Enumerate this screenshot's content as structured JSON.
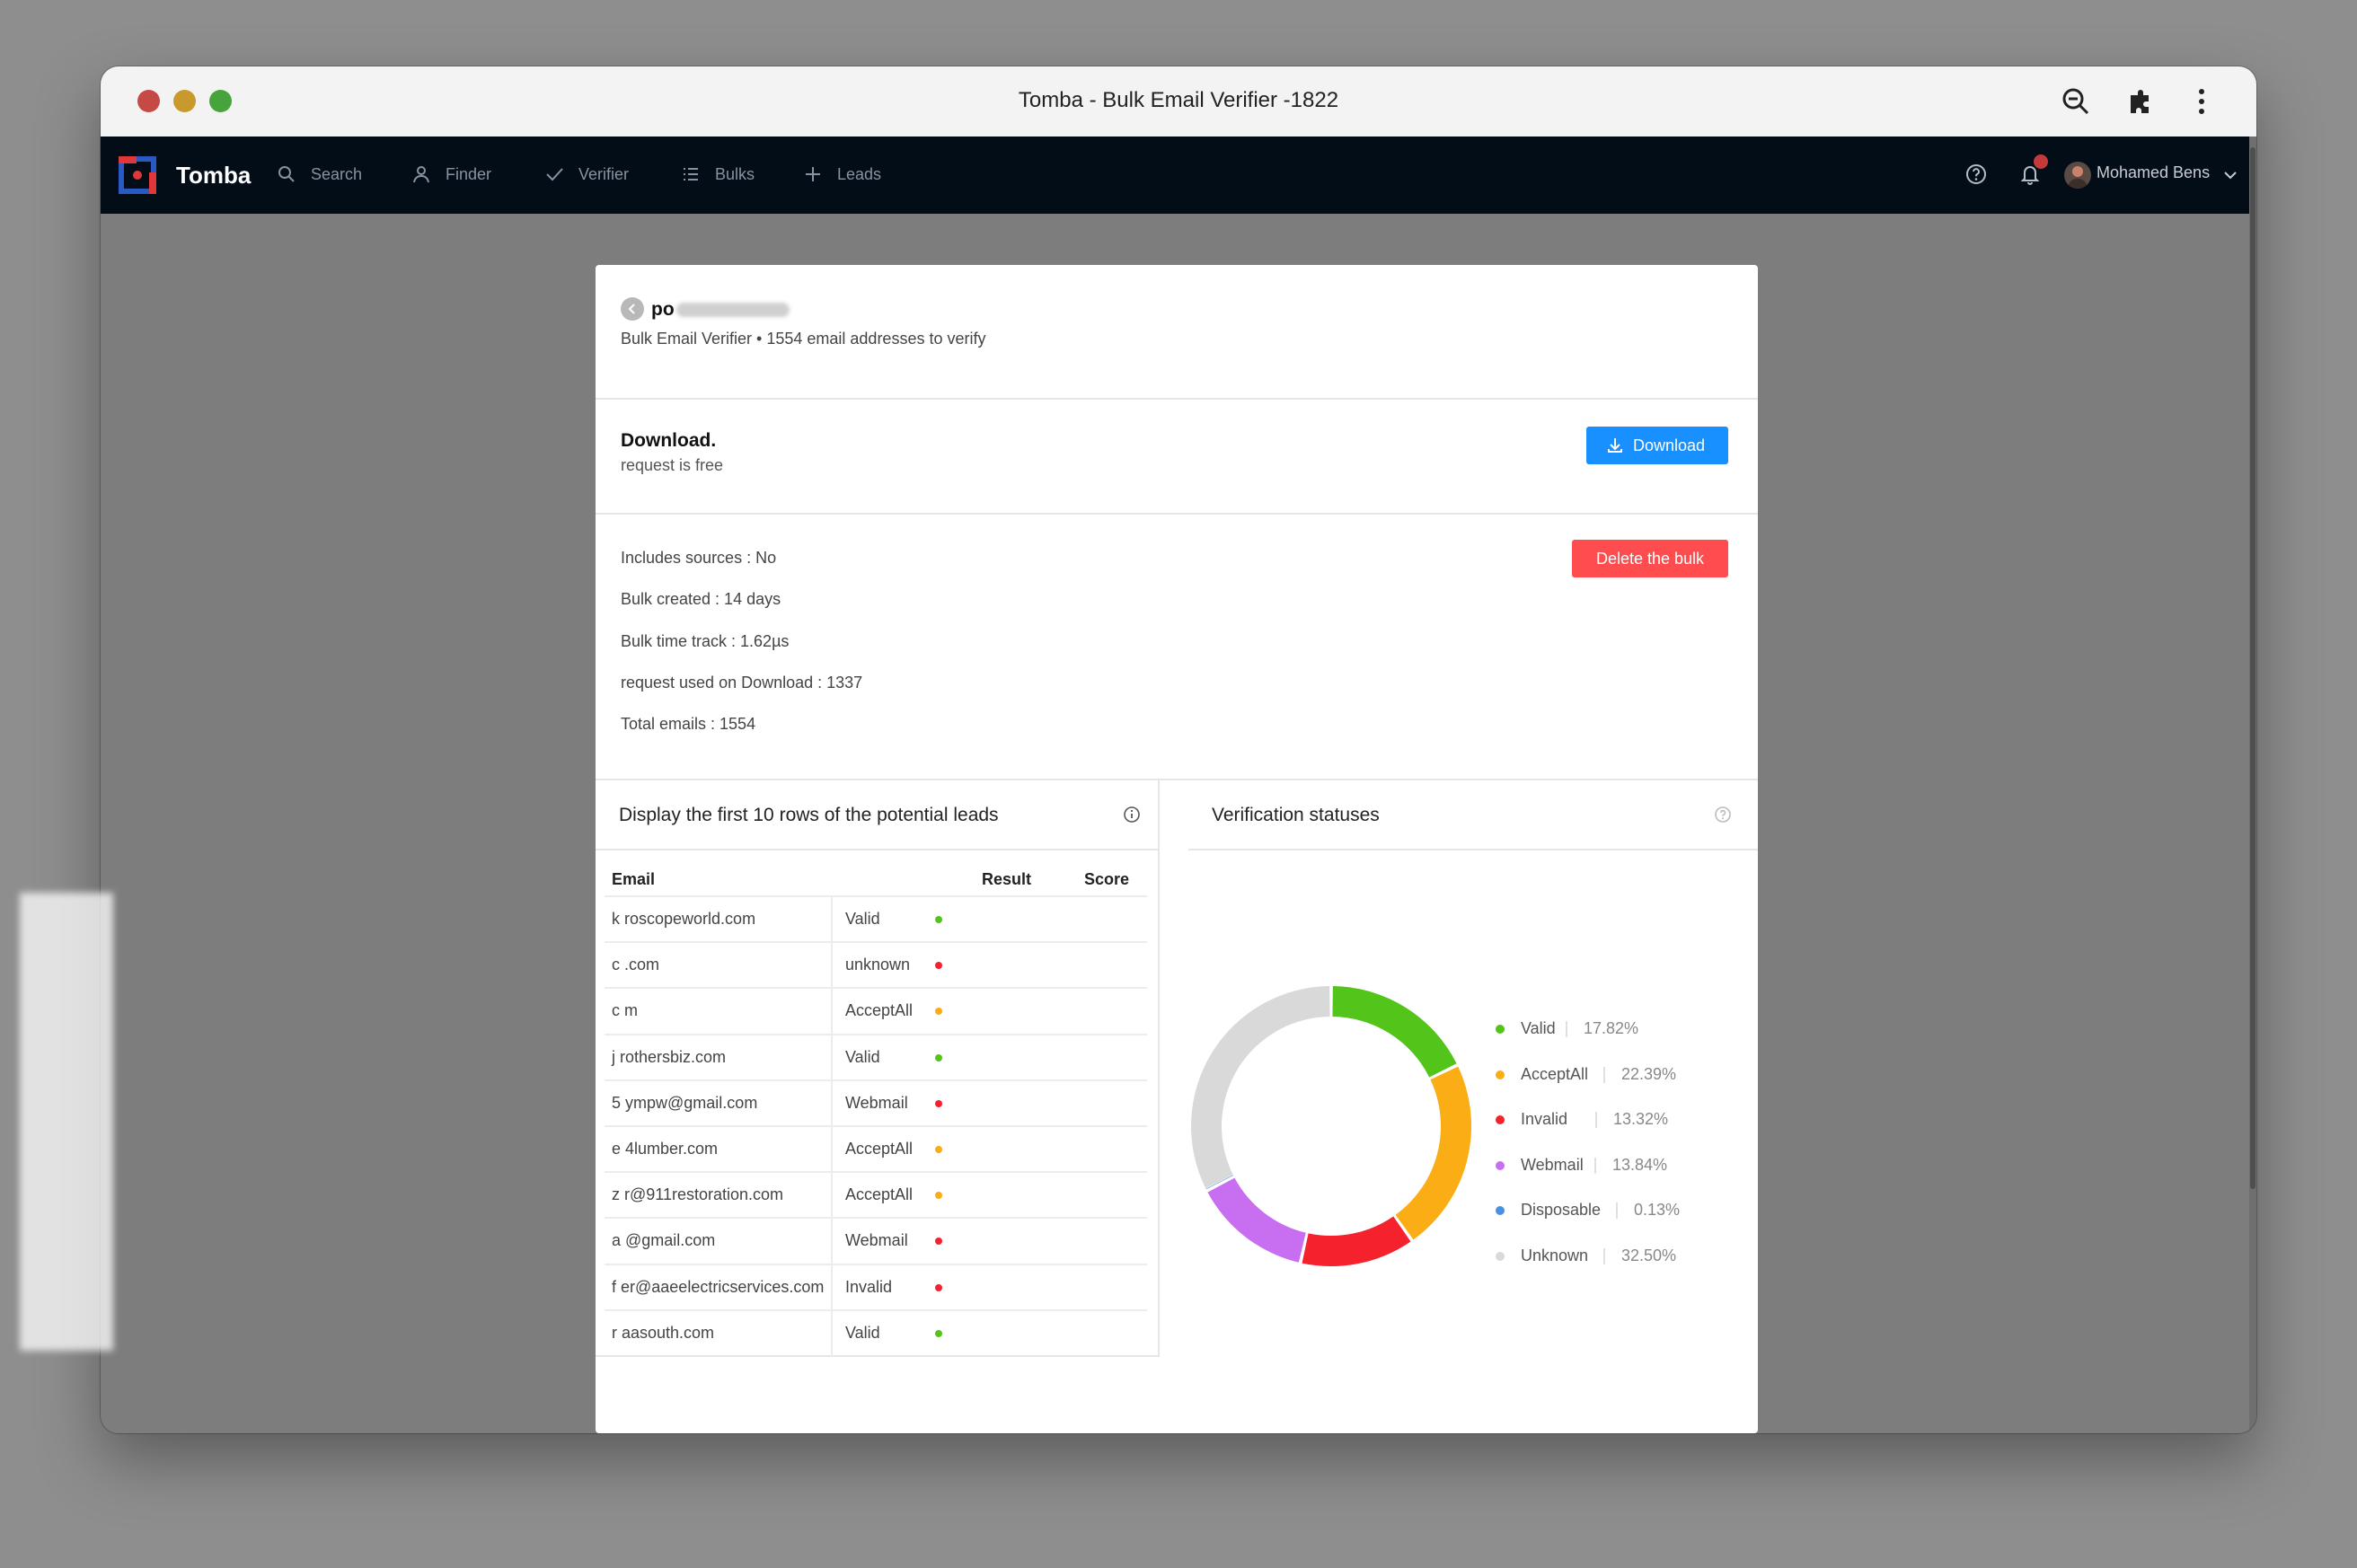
{
  "window": {
    "title": "Tomba - Bulk Email Verifier -1822"
  },
  "nav": {
    "brand": "Tomba",
    "items": [
      {
        "label": "Search",
        "icon": "search-icon"
      },
      {
        "label": "Finder",
        "icon": "user-icon"
      },
      {
        "label": "Verifier",
        "icon": "check-icon"
      },
      {
        "label": "Bulks",
        "icon": "list-icon"
      },
      {
        "label": "Leads",
        "icon": "plus-icon"
      }
    ],
    "user": "Mohamed Bens"
  },
  "header": {
    "name_visible": "po",
    "subtitle": "Bulk Email Verifier • 1554 email addresses to verify"
  },
  "download": {
    "title": "Download.",
    "subtitle": "request is free",
    "button": "Download"
  },
  "info": {
    "lines": [
      "Includes sources : No",
      "Bulk created : 14 days",
      "Bulk time track : 1.62µs",
      "request used on Download : 1337",
      "Total emails : 1554"
    ],
    "delete_button": "Delete the bulk"
  },
  "leads": {
    "title": "Display the first 10 rows of the potential leads",
    "columns": [
      "Email",
      "Result",
      "Score"
    ],
    "rows": [
      {
        "email": "k roscopeworld.com",
        "result": "Valid",
        "score_color": "#52c41a"
      },
      {
        "email": "c .com",
        "result": "unknown",
        "score_color": "#f5222d"
      },
      {
        "email": "c m",
        "result": "AcceptAll",
        "score_color": "#faad14"
      },
      {
        "email": "j rothersbiz.com",
        "result": "Valid",
        "score_color": "#52c41a"
      },
      {
        "email": "5 ympw@gmail.com",
        "result": "Webmail",
        "score_color": "#f5222d"
      },
      {
        "email": "e 4lumber.com",
        "result": "AcceptAll",
        "score_color": "#faad14"
      },
      {
        "email": "z r@911restoration.com",
        "result": "AcceptAll",
        "score_color": "#faad14"
      },
      {
        "email": "a @gmail.com",
        "result": "Webmail",
        "score_color": "#f5222d"
      },
      {
        "email": "f er@aaeelectricservices.com",
        "result": "Invalid",
        "score_color": "#f5222d"
      },
      {
        "email": "r aasouth.com",
        "result": "Valid",
        "score_color": "#52c41a"
      }
    ]
  },
  "status": {
    "title": "Verification statuses",
    "legend": [
      {
        "label": "Valid",
        "value": "17.82%"
      },
      {
        "label": "AcceptAll",
        "value": "22.39%"
      },
      {
        "label": "Invalid",
        "value": "13.32%"
      },
      {
        "label": "Webmail",
        "value": "13.84%"
      },
      {
        "label": "Disposable",
        "value": "0.13%"
      },
      {
        "label": "Unknown",
        "value": "32.50%"
      }
    ]
  },
  "chart_data": {
    "type": "pie",
    "title": "",
    "categories": [
      "Valid",
      "AcceptAll",
      "Invalid",
      "Webmail",
      "Disposable",
      "Unknown"
    ],
    "values": [
      17.82,
      22.39,
      13.32,
      13.84,
      0.13,
      32.5
    ],
    "colors": [
      "#52c41a",
      "#faad14",
      "#f5222d",
      "#c86ef0",
      "#4a90e2",
      "#d9d9d9"
    ],
    "legend": "right"
  }
}
